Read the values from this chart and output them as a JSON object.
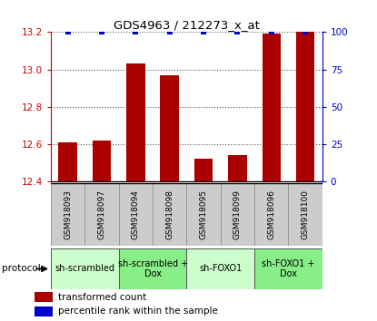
{
  "title": "GDS4963 / 212273_x_at",
  "samples": [
    "GSM918093",
    "GSM918097",
    "GSM918094",
    "GSM918098",
    "GSM918095",
    "GSM918099",
    "GSM918096",
    "GSM918100"
  ],
  "bar_values": [
    12.61,
    12.62,
    13.03,
    12.97,
    12.52,
    12.54,
    13.19,
    13.2
  ],
  "percentile_values": [
    100,
    100,
    100,
    100,
    100,
    100,
    100,
    100
  ],
  "ylim_left": [
    12.4,
    13.2
  ],
  "ylim_right": [
    0,
    100
  ],
  "yticks_left": [
    12.4,
    12.6,
    12.8,
    13.0,
    13.2
  ],
  "yticks_right": [
    0,
    25,
    50,
    75,
    100
  ],
  "bar_color": "#aa0000",
  "dot_color": "#0000cc",
  "bar_width": 0.55,
  "groups": [
    {
      "label": "sh-scrambled",
      "start": 0,
      "end": 2,
      "color": "#ccffcc"
    },
    {
      "label": "sh-scrambled +\nDox",
      "start": 2,
      "end": 4,
      "color": "#88ee88"
    },
    {
      "label": "sh-FOXO1",
      "start": 4,
      "end": 6,
      "color": "#ccffcc"
    },
    {
      "label": "sh-FOXO1 +\nDox",
      "start": 6,
      "end": 8,
      "color": "#88ee88"
    }
  ],
  "protocol_label": "protocol",
  "legend_bar_label": "transformed count",
  "legend_dot_label": "percentile rank within the sample",
  "left_axis_color": "#cc0000",
  "right_axis_color": "#0000cc",
  "grid_color": "#555555",
  "label_bg_color": "#cccccc",
  "label_edge_color": "#999999"
}
